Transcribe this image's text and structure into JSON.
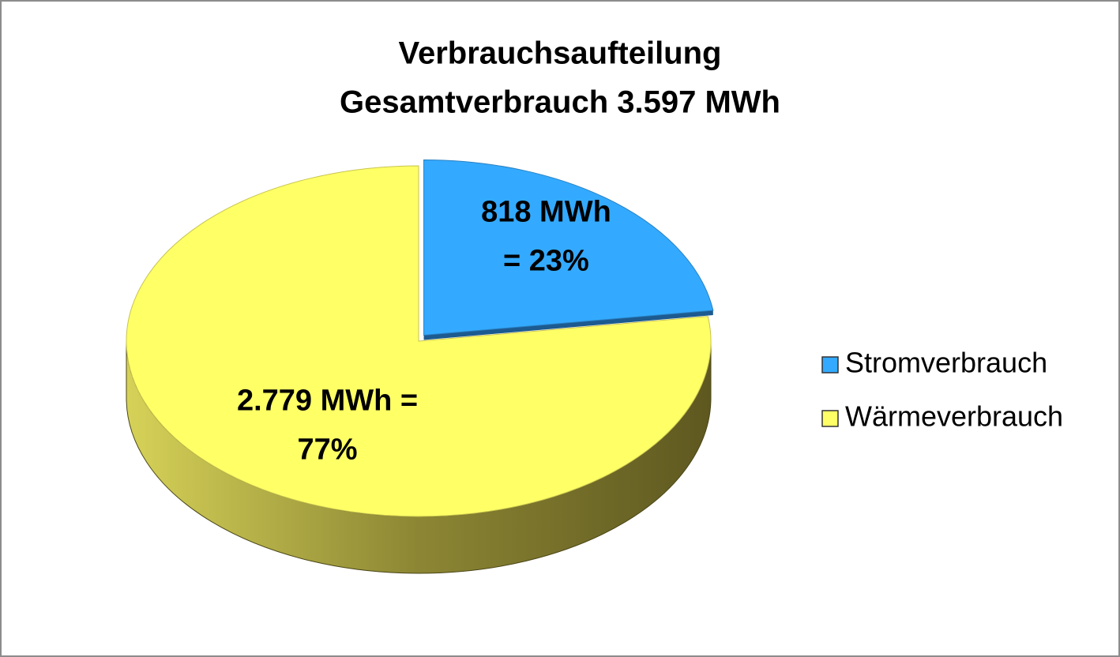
{
  "chart_data": {
    "type": "pie",
    "title": "Verbrauchsaufteilung",
    "subtitle": "Gesamtverbrauch 3.597 MWh",
    "categories": [
      "Stromverbrauch",
      "Wärmeverbrauch"
    ],
    "values": [
      818,
      2779
    ],
    "value_labels": [
      [
        "818 MWh",
        "= 23%"
      ],
      [
        "2.779 MWh =",
        "77%"
      ]
    ],
    "colors": [
      "#33aaff",
      "#ffff66"
    ],
    "legend": "right"
  }
}
